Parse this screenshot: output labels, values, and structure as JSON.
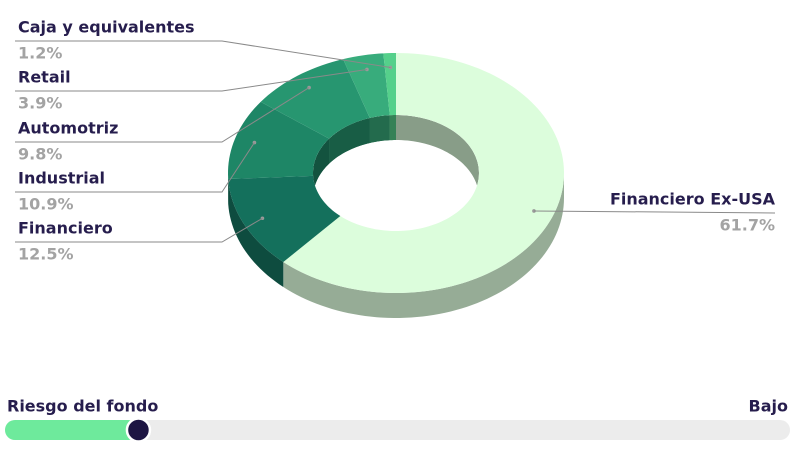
{
  "chart_data": {
    "type": "pie",
    "style": "donut-3d",
    "categories": [
      "Financiero Ex-USA",
      "Financiero",
      "Industrial",
      "Automotriz",
      "Retail",
      "Caja y equivalentes"
    ],
    "values": [
      61.7,
      12.5,
      10.9,
      9.8,
      3.9,
      1.2
    ],
    "value_labels": [
      "61.7%",
      "12.5%",
      "10.9%",
      "9.8%",
      "3.9%",
      "1.2%"
    ],
    "colors": [
      "#dcfddc",
      "#14705c",
      "#1e8666",
      "#279670",
      "#38ac7c",
      "#55d08b"
    ]
  },
  "risk": {
    "label": "Riesgo del fondo",
    "level": "Bajo",
    "value": 17,
    "range": [
      0,
      100
    ]
  }
}
